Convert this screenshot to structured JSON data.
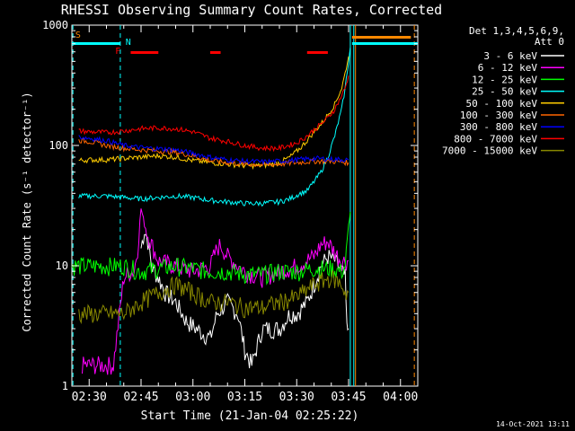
{
  "chart_data": {
    "type": "line",
    "title": "RHESSI Observing Summary Count Rates, Corrected",
    "xlabel": "Start Time (21-Jan-04 02:25:22)",
    "ylabel": "Corrected Count Rate (s⁻¹ detector⁻¹)",
    "yscale": "log",
    "ylim": [
      1,
      1000
    ],
    "xlim_minutes": [
      0,
      100
    ],
    "x_ticks": [
      {
        "label": "02:30",
        "min": 5
      },
      {
        "label": "02:45",
        "min": 20
      },
      {
        "label": "03:00",
        "min": 35
      },
      {
        "label": "03:15",
        "min": 50
      },
      {
        "label": "03:30",
        "min": 65
      },
      {
        "label": "03:45",
        "min": 80
      },
      {
        "label": "04:00",
        "min": 95
      }
    ],
    "y_ticks": [
      {
        "label": "1",
        "value": 1
      },
      {
        "label": "10",
        "value": 10
      },
      {
        "label": "100",
        "value": 100
      },
      {
        "label": "1000",
        "value": 1000
      }
    ],
    "legend_placement": "right",
    "legend_header": [
      "Det 1,3,4,5,6,9,",
      "Att 0"
    ],
    "series": [
      {
        "name": "3 - 6 keV",
        "color": "#ffffff",
        "x": [
          5,
          10,
          15,
          20,
          21,
          22,
          23,
          25,
          27,
          30,
          33,
          36,
          40,
          42,
          45,
          48,
          50,
          52,
          55,
          58,
          60,
          63,
          65,
          68,
          70,
          72,
          74,
          76,
          78,
          79,
          79.5,
          80
        ],
        "y": [
          null,
          null,
          null,
          14,
          20,
          16,
          10,
          8,
          6,
          5,
          3.5,
          3,
          2.5,
          4,
          5,
          4,
          2,
          1.5,
          3,
          3,
          3,
          4,
          4,
          5,
          7,
          10,
          12,
          11,
          9,
          8,
          3,
          3
        ]
      },
      {
        "name": "6 - 12 keV",
        "color": "#ff00ff",
        "x": [
          3,
          5,
          8,
          12,
          15,
          17,
          18,
          19,
          20,
          21,
          22,
          25,
          30,
          35,
          40,
          42,
          43,
          45,
          48,
          50,
          55,
          60,
          65,
          70,
          72,
          74,
          76,
          78,
          79,
          80
        ],
        "y": [
          1.5,
          1.5,
          1.5,
          1.5,
          8,
          9,
          9,
          14,
          30,
          22,
          18,
          11,
          10,
          9,
          10,
          14,
          15,
          12,
          10,
          9,
          8,
          9,
          10,
          12,
          15,
          16,
          13,
          11,
          11,
          11
        ]
      },
      {
        "name": "12 - 25 keV",
        "color": "#00ff00",
        "x": [
          0,
          5,
          10,
          15,
          20,
          25,
          30,
          35,
          40,
          45,
          50,
          55,
          60,
          65,
          70,
          75,
          78,
          79,
          80,
          80.5
        ],
        "y": [
          10,
          10,
          10,
          10,
          9,
          9.5,
          10,
          9.5,
          9,
          9,
          8.5,
          8.5,
          9,
          9,
          9.5,
          9.5,
          9,
          10,
          20,
          28
        ]
      },
      {
        "name": "25 - 50 keV",
        "color": "#00ffff",
        "x": [
          2,
          5,
          10,
          15,
          20,
          25,
          30,
          35,
          40,
          45,
          50,
          55,
          60,
          63,
          66,
          68,
          70,
          72,
          74,
          76,
          78,
          79,
          80,
          80.5
        ],
        "y": [
          38,
          38,
          38,
          37,
          36,
          37,
          38,
          37,
          35,
          34,
          33,
          33,
          34,
          36,
          40,
          42,
          50,
          60,
          80,
          120,
          200,
          300,
          500,
          650
        ]
      },
      {
        "name": "50 - 100 keV",
        "color": "#ffcc00",
        "x": [
          2,
          5,
          10,
          15,
          20,
          25,
          30,
          35,
          40,
          45,
          50,
          55,
          60,
          63,
          66,
          68,
          70,
          72,
          74,
          76,
          78,
          79,
          80
        ],
        "y": [
          75,
          76,
          76,
          78,
          80,
          82,
          80,
          75,
          72,
          70,
          68,
          68,
          72,
          80,
          95,
          110,
          130,
          150,
          180,
          220,
          300,
          400,
          550
        ]
      },
      {
        "name": "100 - 300 keV",
        "color": "#ff6600",
        "x": [
          2,
          5,
          10,
          15,
          20,
          25,
          30,
          35,
          40,
          45,
          50,
          55,
          60,
          65,
          70,
          75,
          80
        ],
        "y": [
          110,
          108,
          100,
          95,
          92,
          90,
          88,
          82,
          75,
          72,
          70,
          69,
          70,
          72,
          74,
          74,
          72
        ]
      },
      {
        "name": "300 - 800 keV",
        "color": "#0000ff",
        "x": [
          2,
          5,
          10,
          15,
          20,
          25,
          30,
          35,
          40,
          45,
          50,
          55,
          60,
          65,
          70,
          75,
          80
        ],
        "y": [
          118,
          115,
          110,
          100,
          96,
          94,
          92,
          86,
          80,
          76,
          74,
          73,
          74,
          76,
          78,
          77,
          76
        ]
      },
      {
        "name": "800 - 7000 keV",
        "color": "#ff0000",
        "x": [
          2,
          5,
          10,
          15,
          20,
          25,
          30,
          35,
          40,
          45,
          50,
          55,
          60,
          65,
          68,
          70,
          72,
          74,
          76,
          78,
          79,
          80
        ],
        "y": [
          132,
          130,
          128,
          132,
          138,
          140,
          138,
          130,
          115,
          108,
          100,
          95,
          95,
          105,
          120,
          135,
          150,
          170,
          200,
          260,
          300,
          380
        ]
      },
      {
        "name": "7000 - 15000 keV",
        "color": "#888800",
        "x": [
          2,
          5,
          10,
          15,
          20,
          25,
          30,
          35,
          40,
          45,
          50,
          55,
          60,
          65,
          70,
          75,
          78,
          79,
          80
        ],
        "y": [
          4,
          4,
          4,
          4,
          5,
          6,
          7,
          6,
          5,
          5,
          4.5,
          4.5,
          5,
          5.5,
          7,
          8,
          7,
          6,
          6
        ]
      }
    ],
    "annotations": {
      "flag_bars_cyan": [
        [
          0,
          14
        ],
        [
          81,
          100
        ]
      ],
      "flag_bars_red": [
        [
          17,
          25
        ],
        [
          40,
          43
        ],
        [
          68,
          74
        ]
      ],
      "flag_bars_orange": [
        [
          81,
          98
        ]
      ],
      "flag_labels": [
        {
          "text": "S",
          "min": 0.5,
          "color": "#ff8800"
        },
        {
          "text": "N",
          "min": 15,
          "color": "#00ffff"
        },
        {
          "text": "F",
          "min": 12,
          "color": "#ff0000"
        }
      ],
      "vertical_lines": [
        {
          "min": 0.3,
          "color": "#00ffff",
          "style": "dashed"
        },
        {
          "min": 14,
          "color": "#00ffff",
          "style": "dashed"
        },
        {
          "min": 80.5,
          "color": "#00ffff",
          "style": "solid"
        },
        {
          "min": 81.5,
          "color": "#00ffff",
          "style": "solid"
        },
        {
          "min": 82,
          "color": "#ff8800",
          "style": "solid"
        },
        {
          "min": 99,
          "color": "#ff8800",
          "style": "dashed"
        }
      ]
    },
    "timestamp": "14-Oct-2021 13:11"
  }
}
